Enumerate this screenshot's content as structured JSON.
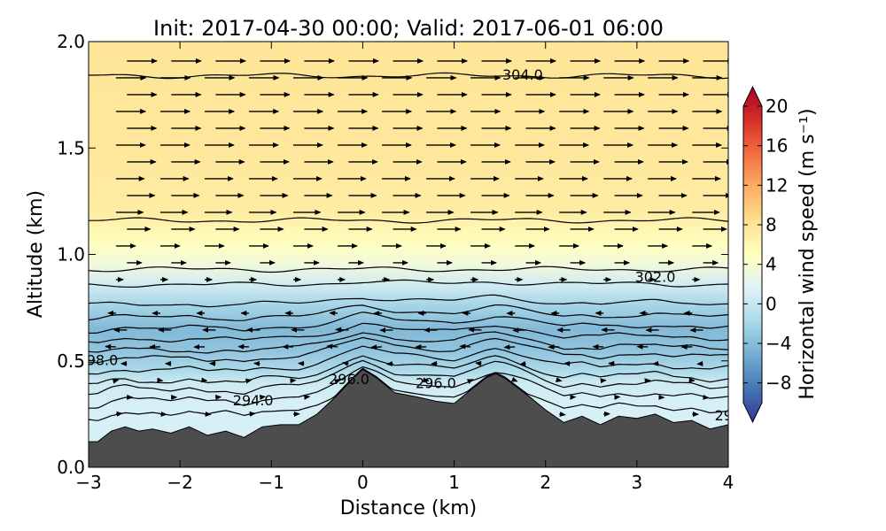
{
  "chart_data": {
    "type": "heatmap",
    "title": "Init: 2017-04-30 00:00; Valid: 2017-06-01 06:00",
    "xlabel": "Distance (km)",
    "ylabel": "Altitude (km)",
    "xlim": [
      -3,
      4
    ],
    "ylim": [
      0,
      2
    ],
    "x_ticks": [
      "−3",
      "−2",
      "−1",
      "0",
      "1",
      "2",
      "3",
      "4"
    ],
    "y_ticks": [
      "0.0",
      "0.5",
      "1.0",
      "1.5",
      "2.0"
    ],
    "colorbar": {
      "label": "Horizontal wind speed (m s⁻¹)",
      "range": [
        -10,
        20
      ],
      "ticks": [
        "−8",
        "−4",
        "0",
        "4",
        "8",
        "12",
        "16",
        "20"
      ],
      "extend": "both",
      "colormap": "RdYlBu_r"
    },
    "wind_speed_layers": [
      {
        "altitude_km": 0.3,
        "speed_ms": 1.5
      },
      {
        "altitude_km": 0.4,
        "speed_ms": 0.8
      },
      {
        "altitude_km": 0.45,
        "speed_ms": -0.8
      },
      {
        "altitude_km": 0.55,
        "speed_ms": -2.5
      },
      {
        "altitude_km": 0.65,
        "speed_ms": -3.2
      },
      {
        "altitude_km": 0.75,
        "speed_ms": -1.5
      },
      {
        "altitude_km": 0.85,
        "speed_ms": 1.0
      },
      {
        "altitude_km": 0.95,
        "speed_ms": 3.5
      },
      {
        "altitude_km": 1.05,
        "speed_ms": 5.0
      },
      {
        "altitude_km": 1.2,
        "speed_ms": 6.8
      },
      {
        "altitude_km": 1.5,
        "speed_ms": 7.3
      },
      {
        "altitude_km": 2.0,
        "speed_ms": 7.5
      }
    ],
    "terrain": {
      "x_km": [
        -3,
        -2.9,
        -2.75,
        -2.6,
        -2.45,
        -2.3,
        -2.1,
        -1.9,
        -1.7,
        -1.5,
        -1.3,
        -1.1,
        -0.9,
        -0.7,
        -0.5,
        -0.3,
        -0.1,
        0.0,
        0.15,
        0.35,
        0.6,
        0.8,
        1.0,
        1.2,
        1.35,
        1.45,
        1.55,
        1.8,
        2.0,
        2.2,
        2.4,
        2.6,
        2.8,
        3.0,
        3.2,
        3.4,
        3.6,
        3.8,
        4.0
      ],
      "altitude_km": [
        0.12,
        0.12,
        0.17,
        0.19,
        0.17,
        0.18,
        0.16,
        0.19,
        0.15,
        0.17,
        0.14,
        0.19,
        0.2,
        0.2,
        0.25,
        0.33,
        0.42,
        0.46,
        0.42,
        0.35,
        0.33,
        0.31,
        0.3,
        0.37,
        0.42,
        0.44,
        0.42,
        0.34,
        0.27,
        0.21,
        0.24,
        0.2,
        0.24,
        0.23,
        0.25,
        0.21,
        0.22,
        0.18,
        0.2
      ]
    },
    "contour_labels": [
      {
        "text": "304.0",
        "x_km": 1.75,
        "altitude_km": 1.84
      },
      {
        "text": "302.0",
        "x_km": 3.2,
        "altitude_km": 0.89
      },
      {
        "text": "98.0",
        "x_km": -2.85,
        "altitude_km": 0.5
      },
      {
        "text": "296.0",
        "x_km": -0.15,
        "altitude_km": 0.41
      },
      {
        "text": "296.0",
        "x_km": 0.8,
        "altitude_km": 0.39
      },
      {
        "text": "294.0",
        "x_km": -1.2,
        "altitude_km": 0.31
      },
      {
        "text": "29",
        "x_km": 3.95,
        "altitude_km": 0.24
      }
    ]
  }
}
